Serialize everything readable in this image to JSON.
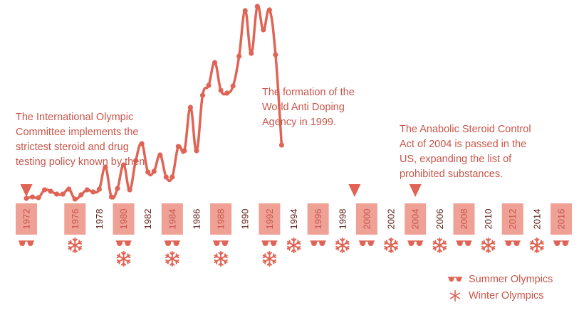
{
  "chart_data": {
    "type": "line",
    "x_start": 1972,
    "x_end": 2016,
    "step": 0.5,
    "values": [
      3,
      5,
      4,
      15,
      13,
      9,
      9,
      16,
      2,
      8,
      15,
      12,
      16,
      47,
      5,
      17,
      50,
      15,
      56,
      80,
      40,
      41,
      64,
      33,
      33,
      76,
      70,
      131,
      70,
      148,
      162,
      194,
      155,
      151,
      161,
      203,
      267,
      207,
      273,
      240,
      268,
      205,
      78
    ],
    "axis_labels": [
      "1972",
      "1976",
      "1978",
      "1980",
      "1982",
      "1984",
      "1986",
      "1988",
      "1990",
      "1992",
      "1994",
      "1996",
      "1998",
      "2000",
      "2002",
      "2004",
      "2006",
      "2008",
      "2010",
      "2012",
      "2014",
      "2016"
    ],
    "ylabel": "",
    "xlabel": "",
    "colors": {
      "line": "#e06455",
      "box": "#efa196",
      "text": "#c8554a",
      "year_dark": "#5a1c14"
    }
  },
  "summer_years": [
    "1972",
    "1980",
    "1984",
    "1988",
    "1992",
    "1996",
    "2000",
    "2004",
    "2008",
    "2012",
    "2016"
  ],
  "winter_years": [
    "1976",
    "1980",
    "1984",
    "1988",
    "1992",
    "1994",
    "1998",
    "2002",
    "2006",
    "2010",
    "2014"
  ],
  "markers": [
    "1972",
    "1999",
    "2004"
  ],
  "annotations": {
    "ioc": "The International Olympic\nCommittee implements the\nstrictest steroid and drug\ntesting policy known by then.",
    "wada": "The formation of the\nWorld Anti Doping\nAgency in 1999.",
    "steroid_act": "The Anabolic Steroid Control\nAct of 2004 is passed in the\nUS, expanding the list of\nprohibited substances."
  },
  "legend": {
    "summer": "Summer Olympics",
    "winter": "Winter Olympics",
    "summer_icon": "sunglasses-icon",
    "winter_icon": "snowflake-icon"
  }
}
